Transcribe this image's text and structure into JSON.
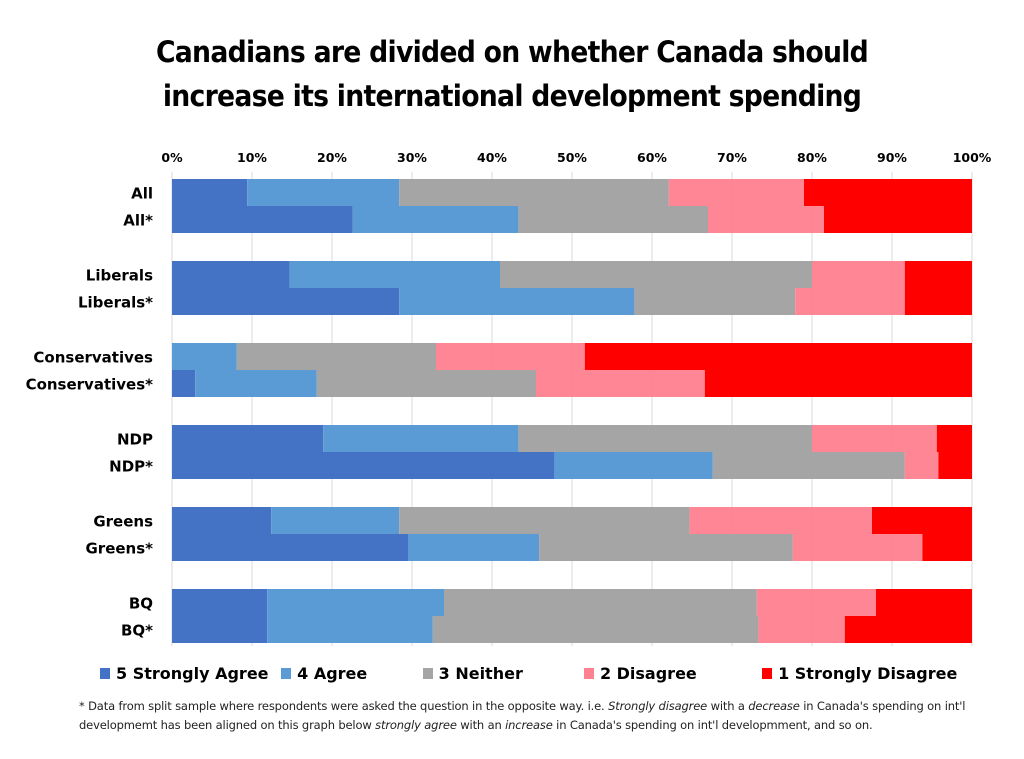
{
  "chart_data": {
    "type": "bar",
    "orientation": "horizontal",
    "stacked": "percent",
    "title": "Canadians are divided on whether Canada should increase its international development spending",
    "title_lines": [
      "Canadians are divided on whether Canada should",
      "increase its international development spending"
    ],
    "xlabel": "",
    "ylabel": "",
    "xlim": [
      0,
      100
    ],
    "x_ticks": [
      "0%",
      "10%",
      "20%",
      "30%",
      "40%",
      "50%",
      "60%",
      "70%",
      "80%",
      "90%",
      "100%"
    ],
    "x_axis_position": "top",
    "grid": true,
    "legend_position": "bottom",
    "categories": [
      "All",
      "All*",
      "Liberals",
      "Liberals*",
      "Conservatives",
      "Conservatives*",
      "NDP",
      "NDP*",
      "Greens",
      "Greens*",
      "BQ",
      "BQ*"
    ],
    "groups": [
      [
        "All",
        "All*"
      ],
      [
        "Liberals",
        "Liberals*"
      ],
      [
        "Conservatives",
        "Conservatives*"
      ],
      [
        "NDP",
        "NDP*"
      ],
      [
        "Greens",
        "Greens*"
      ],
      [
        "BQ",
        "BQ*"
      ]
    ],
    "series": [
      {
        "name": "5 Strongly Agree",
        "color": "#4472C4",
        "values": [
          9.4,
          22.6,
          14.7,
          28.4,
          0.0,
          2.9,
          18.9,
          47.8,
          12.4,
          29.5,
          11.9,
          11.9
        ]
      },
      {
        "name": "4 Agree",
        "color": "#5B9BD5",
        "values": [
          19.0,
          20.7,
          26.3,
          29.4,
          8.1,
          15.2,
          24.4,
          19.8,
          16.0,
          16.4,
          22.1,
          20.7
        ]
      },
      {
        "name": "3 Neither",
        "color": "#A5A5A5",
        "values": [
          33.7,
          23.7,
          39.0,
          20.1,
          24.9,
          27.4,
          36.7,
          24.0,
          36.3,
          31.7,
          39.1,
          40.7
        ]
      },
      {
        "name": "2 Disagree",
        "color": "#FF808E",
        "values": [
          16.9,
          14.5,
          11.6,
          13.7,
          18.6,
          21.1,
          15.6,
          4.2,
          22.8,
          16.2,
          14.9,
          10.8
        ]
      },
      {
        "name": "1 Strongly Disagree",
        "color": "#FF0000",
        "values": [
          21.0,
          18.5,
          8.4,
          8.4,
          48.4,
          33.4,
          4.4,
          4.2,
          12.5,
          6.2,
          12.0,
          15.9
        ]
      }
    ]
  },
  "footnote": {
    "parts": [
      {
        "text": "* Data from split sample where respondents were asked the question in the opposite way.  i.e. ",
        "italic": false
      },
      {
        "text": "Strongly disagree",
        "italic": true
      },
      {
        "text": " with a ",
        "italic": false
      },
      {
        "text": "decrease",
        "italic": true
      },
      {
        "text": " in Canada's spending on int'l developmemt has been aligned on this graph below ",
        "italic": false
      },
      {
        "text": "strongly agree",
        "italic": true
      },
      {
        "text": " with an ",
        "italic": false
      },
      {
        "text": "increase",
        "italic": true
      },
      {
        "text": " in Canada's spending on int'l developmment, and so on.",
        "italic": false
      }
    ]
  }
}
